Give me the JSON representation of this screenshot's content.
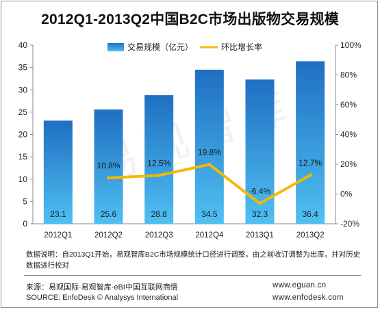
{
  "title": "2012Q1-2013Q2中国B2C市场出版物交易规模",
  "watermark": "易观智库",
  "chart_data": {
    "type": "bar",
    "categories": [
      "2012Q1",
      "2012Q2",
      "2012Q3",
      "2012Q4",
      "2013Q1",
      "2013Q2"
    ],
    "series": [
      {
        "name": "交易规模（亿元）",
        "type": "bar",
        "axis": "left",
        "color": "#2f8fd8",
        "values": [
          23.1,
          25.6,
          28.8,
          34.5,
          32.3,
          36.4
        ],
        "labels": [
          "23.1",
          "25.6",
          "28.8",
          "34.5",
          "32.3",
          "36.4"
        ]
      },
      {
        "name": "环比增长率",
        "type": "line",
        "axis": "right",
        "color": "#f5b800",
        "values": [
          null,
          10.8,
          12.5,
          19.8,
          -6.4,
          12.7
        ],
        "labels": [
          "",
          "10.8%",
          "12.5%",
          "19.8%",
          "-6.4%",
          "12.7%"
        ]
      }
    ],
    "left_axis": {
      "ylim": [
        0,
        40
      ],
      "ticks": [
        "0",
        "5",
        "10",
        "15",
        "20",
        "25",
        "30",
        "35",
        "40"
      ]
    },
    "right_axis": {
      "ylim": [
        -20,
        100
      ],
      "ticks": [
        "-20%",
        "0%",
        "20%",
        "40%",
        "60%",
        "80%",
        "100%"
      ]
    },
    "legend_position": "top",
    "grid": false
  },
  "note": "数据说明：自2013Q1开始，易观智库B2C市场规模统计口径进行调整，由之前收订调整为出库，并对历史数据进行校对",
  "source_cn": "来源：易观国际·易观智库·eBI中国互联网商情",
  "source_en": "SOURCE: EnfoDesk © Analysys International",
  "website1": "www.eguan.cn",
  "website2": "www.enfodesk.com"
}
